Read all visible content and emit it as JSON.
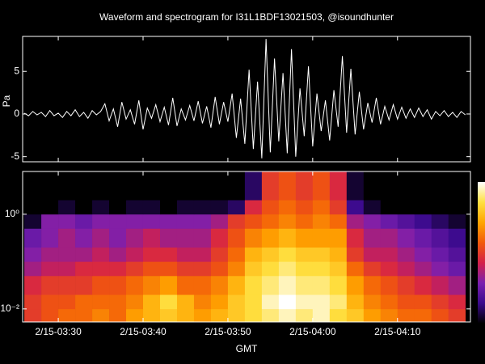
{
  "chart_data": [
    {
      "type": "line",
      "title": "Waveform and spectrogram for I31L1BDF13021503, @isoundhunter",
      "ylabel": "Pa",
      "color": "#ffffff",
      "xlim": [
        205.8,
        258.6
      ],
      "ylim": [
        -5.6,
        9.1
      ],
      "yticks": [
        -5,
        0,
        5
      ],
      "x": [
        206,
        206.5,
        207,
        207.5,
        208,
        208.5,
        209,
        209.5,
        210,
        210.5,
        211,
        211.5,
        212,
        212.5,
        213,
        213.5,
        214,
        214.5,
        215,
        215.5,
        216,
        216.5,
        217,
        217.5,
        218,
        218.5,
        219,
        219.5,
        220,
        220.5,
        221,
        221.5,
        222,
        222.5,
        223,
        223.5,
        224,
        224.5,
        225,
        225.5,
        226,
        226.5,
        227,
        227.5,
        228,
        228.5,
        229,
        229.5,
        230,
        230.5,
        231,
        231.5,
        232,
        232.5,
        233,
        233.5,
        234,
        234.5,
        235,
        235.5,
        236,
        236.5,
        237,
        237.5,
        238,
        238.5,
        239,
        239.5,
        240,
        240.5,
        241,
        241.5,
        242,
        242.5,
        243,
        243.5,
        244,
        244.5,
        245,
        245.5,
        246,
        246.5,
        247,
        247.5,
        248,
        248.5,
        249,
        249.5,
        250,
        250.5,
        251,
        251.5,
        252,
        252.5,
        253,
        253.5,
        254,
        254.5,
        255,
        255.5,
        256,
        256.5,
        257,
        257.5,
        258
      ],
      "values": [
        0.1,
        -0.2,
        0.3,
        -0.1,
        0.2,
        -0.3,
        0.4,
        -0.2,
        0.1,
        -0.4,
        0.3,
        -0.2,
        0.5,
        -0.3,
        0.2,
        -0.5,
        0.4,
        -0.1,
        0.3,
        1.2,
        -0.8,
        0.6,
        -1.5,
        1.4,
        -0.6,
        0.5,
        -1.2,
        1.6,
        -1.8,
        0.7,
        -0.5,
        1.1,
        -0.9,
        0.8,
        -1.3,
        1.9,
        -1.4,
        0.6,
        -0.7,
        1.0,
        -0.8,
        1.5,
        -1.1,
        0.9,
        -1.6,
        2.0,
        -1.2,
        1.4,
        -0.9,
        2.4,
        -2.8,
        1.8,
        -3.5,
        5.2,
        -4.1,
        3.8,
        -5.2,
        8.8,
        -4.5,
        6.5,
        -3.2,
        4.8,
        -4.6,
        7.6,
        -5.0,
        3.0,
        -2.6,
        5.6,
        -3.8,
        2.4,
        -2.0,
        1.6,
        -3.1,
        2.8,
        -1.5,
        6.8,
        -2.2,
        5.3,
        -2.4,
        2.6,
        -1.8,
        1.3,
        -1.0,
        1.9,
        -1.2,
        0.9,
        -0.7,
        1.1,
        -0.6,
        0.8,
        -0.5,
        0.6,
        -0.4,
        0.7,
        -0.3,
        0.5,
        -0.6,
        0.3,
        -0.2,
        0.4,
        -0.3,
        0.2,
        -0.4,
        0.3,
        -0.1
      ]
    },
    {
      "type": "heatmap",
      "xlabel": "GMT",
      "ylog": true,
      "xlim": [
        205.8,
        258.6
      ],
      "ylim": [
        0.0053,
        8
      ],
      "xticks": [
        {
          "value": 210,
          "label": "2/15-03:30"
        },
        {
          "value": 220,
          "label": "2/15-03:40"
        },
        {
          "value": 230,
          "label": "2/15-03:50"
        },
        {
          "value": 240,
          "label": "2/15-04:00"
        },
        {
          "value": 250,
          "label": "2/15-04:10"
        }
      ],
      "yticks": [
        {
          "value": 1,
          "label": "10⁰"
        },
        {
          "value": 0.01,
          "label": "10⁻²"
        }
      ],
      "colormap": [
        "#000000",
        "#3a0a8c",
        "#7a1fb0",
        "#d4204a",
        "#f25a0a",
        "#ffa500",
        "#ffe040",
        "#ffffff"
      ],
      "zlim": [
        0,
        1
      ],
      "colorbar": true,
      "x_edges": [
        206,
        208,
        210,
        212,
        214,
        216,
        218,
        220,
        222,
        224,
        226,
        228,
        230,
        232,
        234,
        236,
        238,
        240,
        242,
        244,
        246,
        248,
        250,
        252,
        254,
        256,
        258
      ],
      "y_edges": [
        0.0053,
        0.01,
        0.02,
        0.05,
        0.1,
        0.2,
        0.5,
        1,
        2,
        8
      ],
      "z": [
        [
          0.5,
          0.55,
          0.6,
          0.6,
          0.65,
          0.6,
          0.7,
          0.75,
          0.8,
          0.75,
          0.7,
          0.75,
          0.8,
          0.85,
          0.9,
          0.95,
          0.9,
          0.95,
          0.85,
          0.8,
          0.7,
          0.65,
          0.6,
          0.6,
          0.55,
          0.5
        ],
        [
          0.5,
          0.55,
          0.55,
          0.6,
          0.6,
          0.6,
          0.65,
          0.75,
          0.85,
          0.75,
          0.65,
          0.7,
          0.8,
          0.85,
          0.95,
          1.0,
          0.95,
          0.95,
          0.9,
          0.75,
          0.65,
          0.6,
          0.55,
          0.55,
          0.5,
          0.45
        ],
        [
          0.45,
          0.5,
          0.5,
          0.5,
          0.55,
          0.55,
          0.6,
          0.65,
          0.7,
          0.6,
          0.6,
          0.65,
          0.75,
          0.85,
          0.9,
          0.95,
          0.9,
          0.9,
          0.85,
          0.7,
          0.6,
          0.55,
          0.5,
          0.45,
          0.4,
          0.35
        ],
        [
          0.35,
          0.4,
          0.4,
          0.45,
          0.45,
          0.45,
          0.5,
          0.55,
          0.55,
          0.5,
          0.5,
          0.55,
          0.65,
          0.8,
          0.85,
          0.9,
          0.85,
          0.85,
          0.8,
          0.6,
          0.5,
          0.45,
          0.4,
          0.35,
          0.3,
          0.25
        ],
        [
          0.3,
          0.35,
          0.35,
          0.35,
          0.4,
          0.35,
          0.4,
          0.45,
          0.45,
          0.4,
          0.4,
          0.5,
          0.6,
          0.75,
          0.8,
          0.85,
          0.8,
          0.8,
          0.75,
          0.5,
          0.4,
          0.4,
          0.35,
          0.3,
          0.25,
          0.2
        ],
        [
          0.25,
          0.3,
          0.35,
          0.3,
          0.35,
          0.3,
          0.35,
          0.4,
          0.35,
          0.35,
          0.35,
          0.45,
          0.55,
          0.65,
          0.7,
          0.75,
          0.7,
          0.7,
          0.7,
          0.45,
          0.35,
          0.35,
          0.3,
          0.25,
          0.2,
          0.15
        ],
        [
          0.05,
          0.3,
          0.3,
          0.25,
          0.3,
          0.3,
          0.3,
          0.3,
          0.3,
          0.3,
          0.3,
          0.35,
          0.5,
          0.55,
          0.6,
          0.65,
          0.6,
          0.65,
          0.6,
          0.35,
          0.3,
          0.25,
          0.2,
          0.15,
          0.1,
          0.05
        ],
        [
          0,
          0,
          0.05,
          0,
          0.05,
          0,
          0.05,
          0.05,
          0,
          0.05,
          0.05,
          0.05,
          0.1,
          0.45,
          0.55,
          0.6,
          0.55,
          0.6,
          0.5,
          0.15,
          0.05,
          0,
          0,
          0,
          0,
          0
        ],
        [
          0,
          0,
          0,
          0,
          0,
          0,
          0,
          0,
          0,
          0,
          0,
          0,
          0,
          0.1,
          0.5,
          0.55,
          0.5,
          0.55,
          0.45,
          0.05,
          0,
          0,
          0,
          0,
          0,
          0
        ]
      ]
    }
  ]
}
